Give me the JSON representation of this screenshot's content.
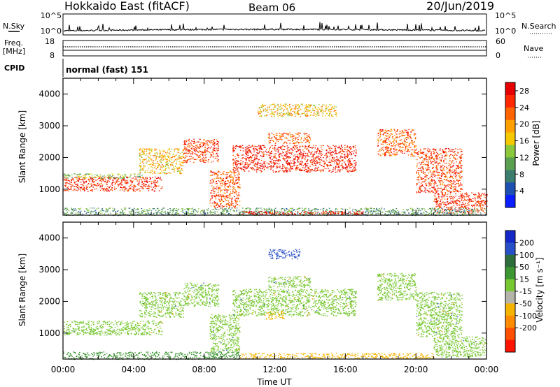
{
  "header": {
    "site": "Hokkaido East (fitACF)",
    "beam": "Beam 06",
    "date": "20/Jun/2019"
  },
  "strip": {
    "nsky_label": "N.Sky",
    "nsky_ticks": [
      "10^5",
      "10^0"
    ],
    "nsearch_label": "N.Search",
    "freq_label": "Freq.",
    "freq_unit": "[MHz]",
    "freq_ticks": [
      "18",
      "8"
    ],
    "nave_label": "Nave",
    "nave_ticks": [
      "60",
      "0"
    ],
    "cpid_label": "CPID",
    "cpid_value": "normal (fast) 151"
  },
  "colors": {
    "power": [
      "#0a1eff",
      "#1e50b4",
      "#3c7e6e",
      "#5aa050",
      "#8cc83c",
      "#f5c800",
      "#ffa000",
      "#ff6400",
      "#ff2800",
      "#e60000"
    ],
    "velocity": [
      "#1428c8",
      "#2850c8",
      "#2d6e3c",
      "#3c9632",
      "#78c832",
      "#b4b4aa",
      "#f5b400",
      "#ff8c00",
      "#ff5000",
      "#ff1400"
    ],
    "ground_scatter": "#b4b4aa"
  },
  "chart_data": [
    {
      "type": "heatmap",
      "panel": "power",
      "xlabel": "Time UT",
      "ylabel": "Slant Range [km]",
      "xlim": [
        0,
        24
      ],
      "ylim": [
        180,
        4500
      ],
      "x_ticks": [
        "00:00",
        "04:00",
        "08:00",
        "12:00",
        "16:00",
        "20:00",
        "00:00"
      ],
      "y_ticks": [
        "1000",
        "2000",
        "3000",
        "4000"
      ],
      "y_tick_values": [
        1000,
        2000,
        3000,
        4000
      ],
      "colorbar_label": "Power [dB]",
      "colorbar_ticks": [
        "4",
        "8",
        "12",
        "16",
        "20",
        "24",
        "28"
      ],
      "colorbar_range": [
        0,
        30
      ],
      "regions": [
        {
          "t0": 0.0,
          "t1": 5.6,
          "r0": 950,
          "r1": 1400,
          "value": 26
        },
        {
          "t0": 0.0,
          "t1": 4.5,
          "r0": 1350,
          "r1": 1500,
          "value": 13
        },
        {
          "t0": 4.3,
          "t1": 6.8,
          "r0": 1500,
          "r1": 2300,
          "value": 18
        },
        {
          "t0": 6.8,
          "t1": 8.8,
          "r0": 1850,
          "r1": 2600,
          "value": 25
        },
        {
          "t0": 8.3,
          "t1": 10.0,
          "r0": 400,
          "r1": 1600,
          "value": 24
        },
        {
          "t0": 9.6,
          "t1": 16.6,
          "r0": 1550,
          "r1": 2400,
          "value": 27
        },
        {
          "t0": 11.6,
          "t1": 14.0,
          "r0": 2450,
          "r1": 2800,
          "value": 23
        },
        {
          "t0": 11.0,
          "t1": 15.5,
          "r0": 3300,
          "r1": 3700,
          "value": 18
        },
        {
          "t0": 17.8,
          "t1": 20.0,
          "r0": 2050,
          "r1": 2900,
          "value": 23
        },
        {
          "t0": 20.0,
          "t1": 22.6,
          "r0": 900,
          "r1": 2300,
          "value": 25
        },
        {
          "t0": 21.0,
          "t1": 24.0,
          "r0": 250,
          "r1": 900,
          "value": 26
        },
        {
          "t0": 0.0,
          "t1": 24.0,
          "r0": 180,
          "r1": 420,
          "value": 10
        },
        {
          "t0": 10.0,
          "t1": 17.0,
          "r0": 200,
          "r1": 320,
          "value": 28
        }
      ]
    },
    {
      "type": "heatmap",
      "panel": "velocity",
      "xlabel": "Time UT",
      "ylabel": "Slant Range [km]",
      "xlim": [
        0,
        24
      ],
      "ylim": [
        180,
        4500
      ],
      "x_ticks": [
        "00:00",
        "04:00",
        "08:00",
        "12:00",
        "16:00",
        "20:00",
        "00:00"
      ],
      "y_ticks": [
        "1000",
        "2000",
        "3000",
        "4000"
      ],
      "y_tick_values": [
        1000,
        2000,
        3000,
        4000
      ],
      "colorbar_label": "Velocity [m s⁻¹]",
      "colorbar_ticks": [
        "200",
        "100",
        "50",
        "15",
        "-15",
        "-50",
        "-100",
        "-200"
      ],
      "regions": [
        {
          "t0": 0.0,
          "t1": 5.6,
          "r0": 950,
          "r1": 1400,
          "value": 0
        },
        {
          "t0": 4.3,
          "t1": 6.8,
          "r0": 1500,
          "r1": 2300,
          "value": 0
        },
        {
          "t0": 6.8,
          "t1": 8.8,
          "r0": 1850,
          "r1": 2600,
          "value": 0
        },
        {
          "t0": 8.3,
          "t1": 10.0,
          "r0": 400,
          "r1": 1600,
          "value": 0
        },
        {
          "t0": 9.6,
          "t1": 16.6,
          "r0": 1550,
          "r1": 2400,
          "value": 0
        },
        {
          "t0": 11.6,
          "t1": 14.0,
          "r0": 2450,
          "r1": 2800,
          "value": 0
        },
        {
          "t0": 11.6,
          "t1": 13.4,
          "r0": 3350,
          "r1": 3650,
          "value": 180
        },
        {
          "t0": 17.8,
          "t1": 20.0,
          "r0": 2050,
          "r1": 2900,
          "value": 0
        },
        {
          "t0": 20.0,
          "t1": 22.6,
          "r0": 900,
          "r1": 2300,
          "value": 0
        },
        {
          "t0": 21.0,
          "t1": 24.0,
          "r0": 250,
          "r1": 900,
          "value": 0
        },
        {
          "t0": 0.0,
          "t1": 10.0,
          "r0": 180,
          "r1": 420,
          "value": 30
        },
        {
          "t0": 10.0,
          "t1": 21.0,
          "r0": 200,
          "r1": 380,
          "value": -60
        },
        {
          "t0": 11.5,
          "t1": 12.5,
          "r0": 1450,
          "r1": 1700,
          "value": -60
        }
      ]
    }
  ]
}
